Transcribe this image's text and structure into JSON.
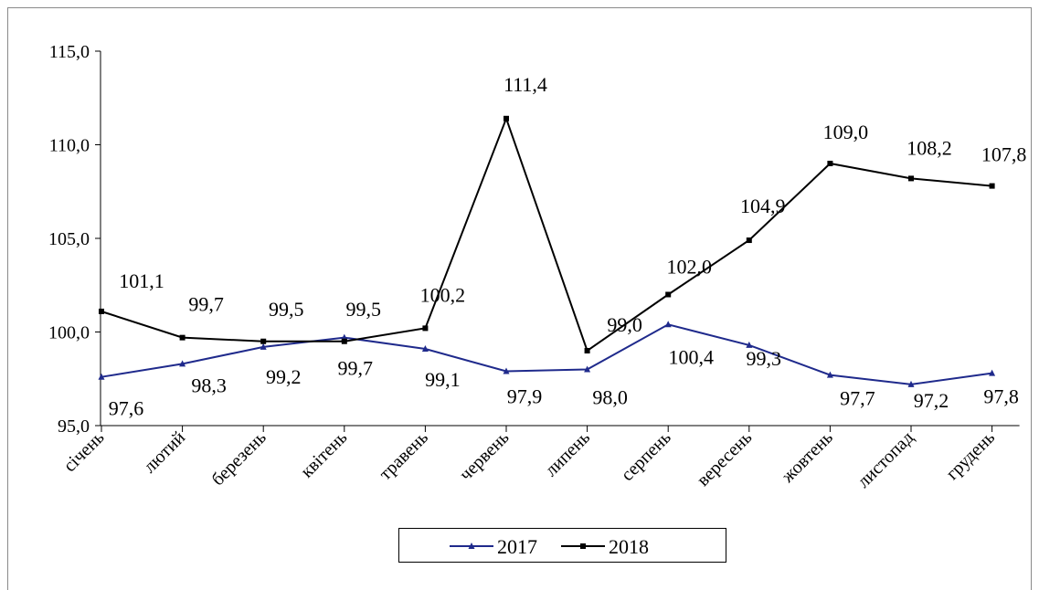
{
  "chart_data": {
    "type": "line",
    "categories": [
      "січень",
      "лютий",
      "березень",
      "квітень",
      "травень",
      "червень",
      "липень",
      "серпень",
      "вересень",
      "жовтень",
      "листопад",
      "грудень"
    ],
    "series": [
      {
        "name": "2017",
        "values": [
          97.6,
          98.3,
          99.2,
          99.7,
          99.1,
          97.9,
          98.0,
          100.4,
          99.3,
          97.7,
          97.2,
          97.8
        ],
        "labels": [
          "97,6",
          "98,3",
          "99,2",
          "99,7",
          "99,1",
          "97,9",
          "98,0",
          "100,4",
          "99,3",
          "97,7",
          "97,2",
          "97,8"
        ],
        "color": "#1f2a8c",
        "marker": "triangle"
      },
      {
        "name": "2018",
        "values": [
          101.1,
          99.7,
          99.5,
          99.5,
          100.2,
          111.4,
          99.0,
          102.0,
          104.9,
          109.0,
          108.2,
          107.8
        ],
        "labels": [
          "101,1",
          "99,7",
          "99,5",
          "99,5",
          "100,2",
          "111,4",
          "99,0",
          "102,0",
          "104,9",
          "109,0",
          "108,2",
          "107,8"
        ],
        "color": "#000000",
        "marker": "square"
      }
    ],
    "ylim": [
      95.0,
      115.0
    ],
    "yticks": [
      95.0,
      100.0,
      105.0,
      110.0,
      115.0
    ],
    "ytick_labels": [
      "95,0",
      "100,0",
      "105,0",
      "110,0",
      "115,0"
    ],
    "grid": false,
    "legend_position": "bottom"
  }
}
